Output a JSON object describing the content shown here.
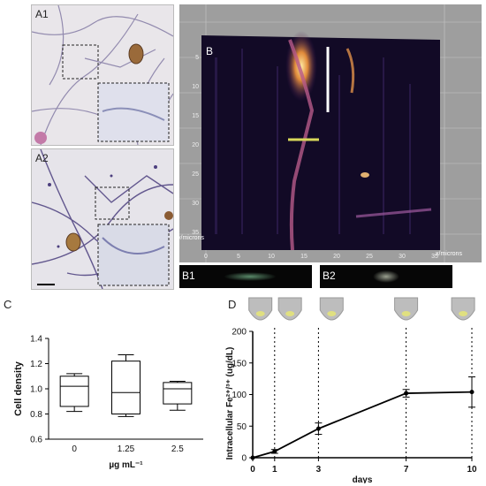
{
  "panels": {
    "a1": "A1",
    "a2": "A2",
    "b": "B",
    "b1": "B1",
    "b2": "B2",
    "c": "C",
    "d": "D"
  },
  "volume_render": {
    "y_axis_label": "y/microns",
    "x_axis_label": "x/microns",
    "x_ticks": [
      "0",
      "5",
      "10",
      "15",
      "20",
      "25",
      "30",
      "35"
    ],
    "y_ticks": [
      "5",
      "10",
      "15",
      "20",
      "25",
      "30",
      "35"
    ]
  },
  "chart_data": [
    {
      "type": "box",
      "title": "",
      "xlabel": "µg mL⁻¹",
      "ylabel": "Cell density",
      "ylim": [
        0.6,
        1.4
      ],
      "yticks": [
        0.6,
        0.8,
        1.0,
        1.2,
        1.4
      ],
      "categories": [
        "0",
        "1.25",
        "2.5"
      ],
      "boxes": [
        {
          "min": 0.82,
          "q1": 0.86,
          "median": 1.02,
          "q3": 1.1,
          "max": 1.12
        },
        {
          "min": 0.78,
          "q1": 0.8,
          "median": 0.97,
          "q3": 1.22,
          "max": 1.27
        },
        {
          "min": 0.83,
          "q1": 0.88,
          "median": 1.0,
          "q3": 1.05,
          "max": 1.06
        }
      ]
    },
    {
      "type": "line",
      "title": "",
      "xlabel": "days",
      "ylabel": "Intracellular Fe²⁺/³⁺ (ug/dL)",
      "xlim": [
        0,
        10
      ],
      "ylim": [
        0,
        200
      ],
      "xticks": [
        0,
        1,
        3,
        7,
        10
      ],
      "yticks": [
        0,
        50,
        100,
        150,
        200
      ],
      "x": [
        0,
        1,
        3,
        7,
        10
      ],
      "y": [
        0,
        10,
        46,
        102,
        104
      ],
      "error": [
        0,
        3,
        9,
        6,
        24
      ],
      "dotted_lines_at": [
        1,
        3,
        7,
        10
      ]
    }
  ]
}
